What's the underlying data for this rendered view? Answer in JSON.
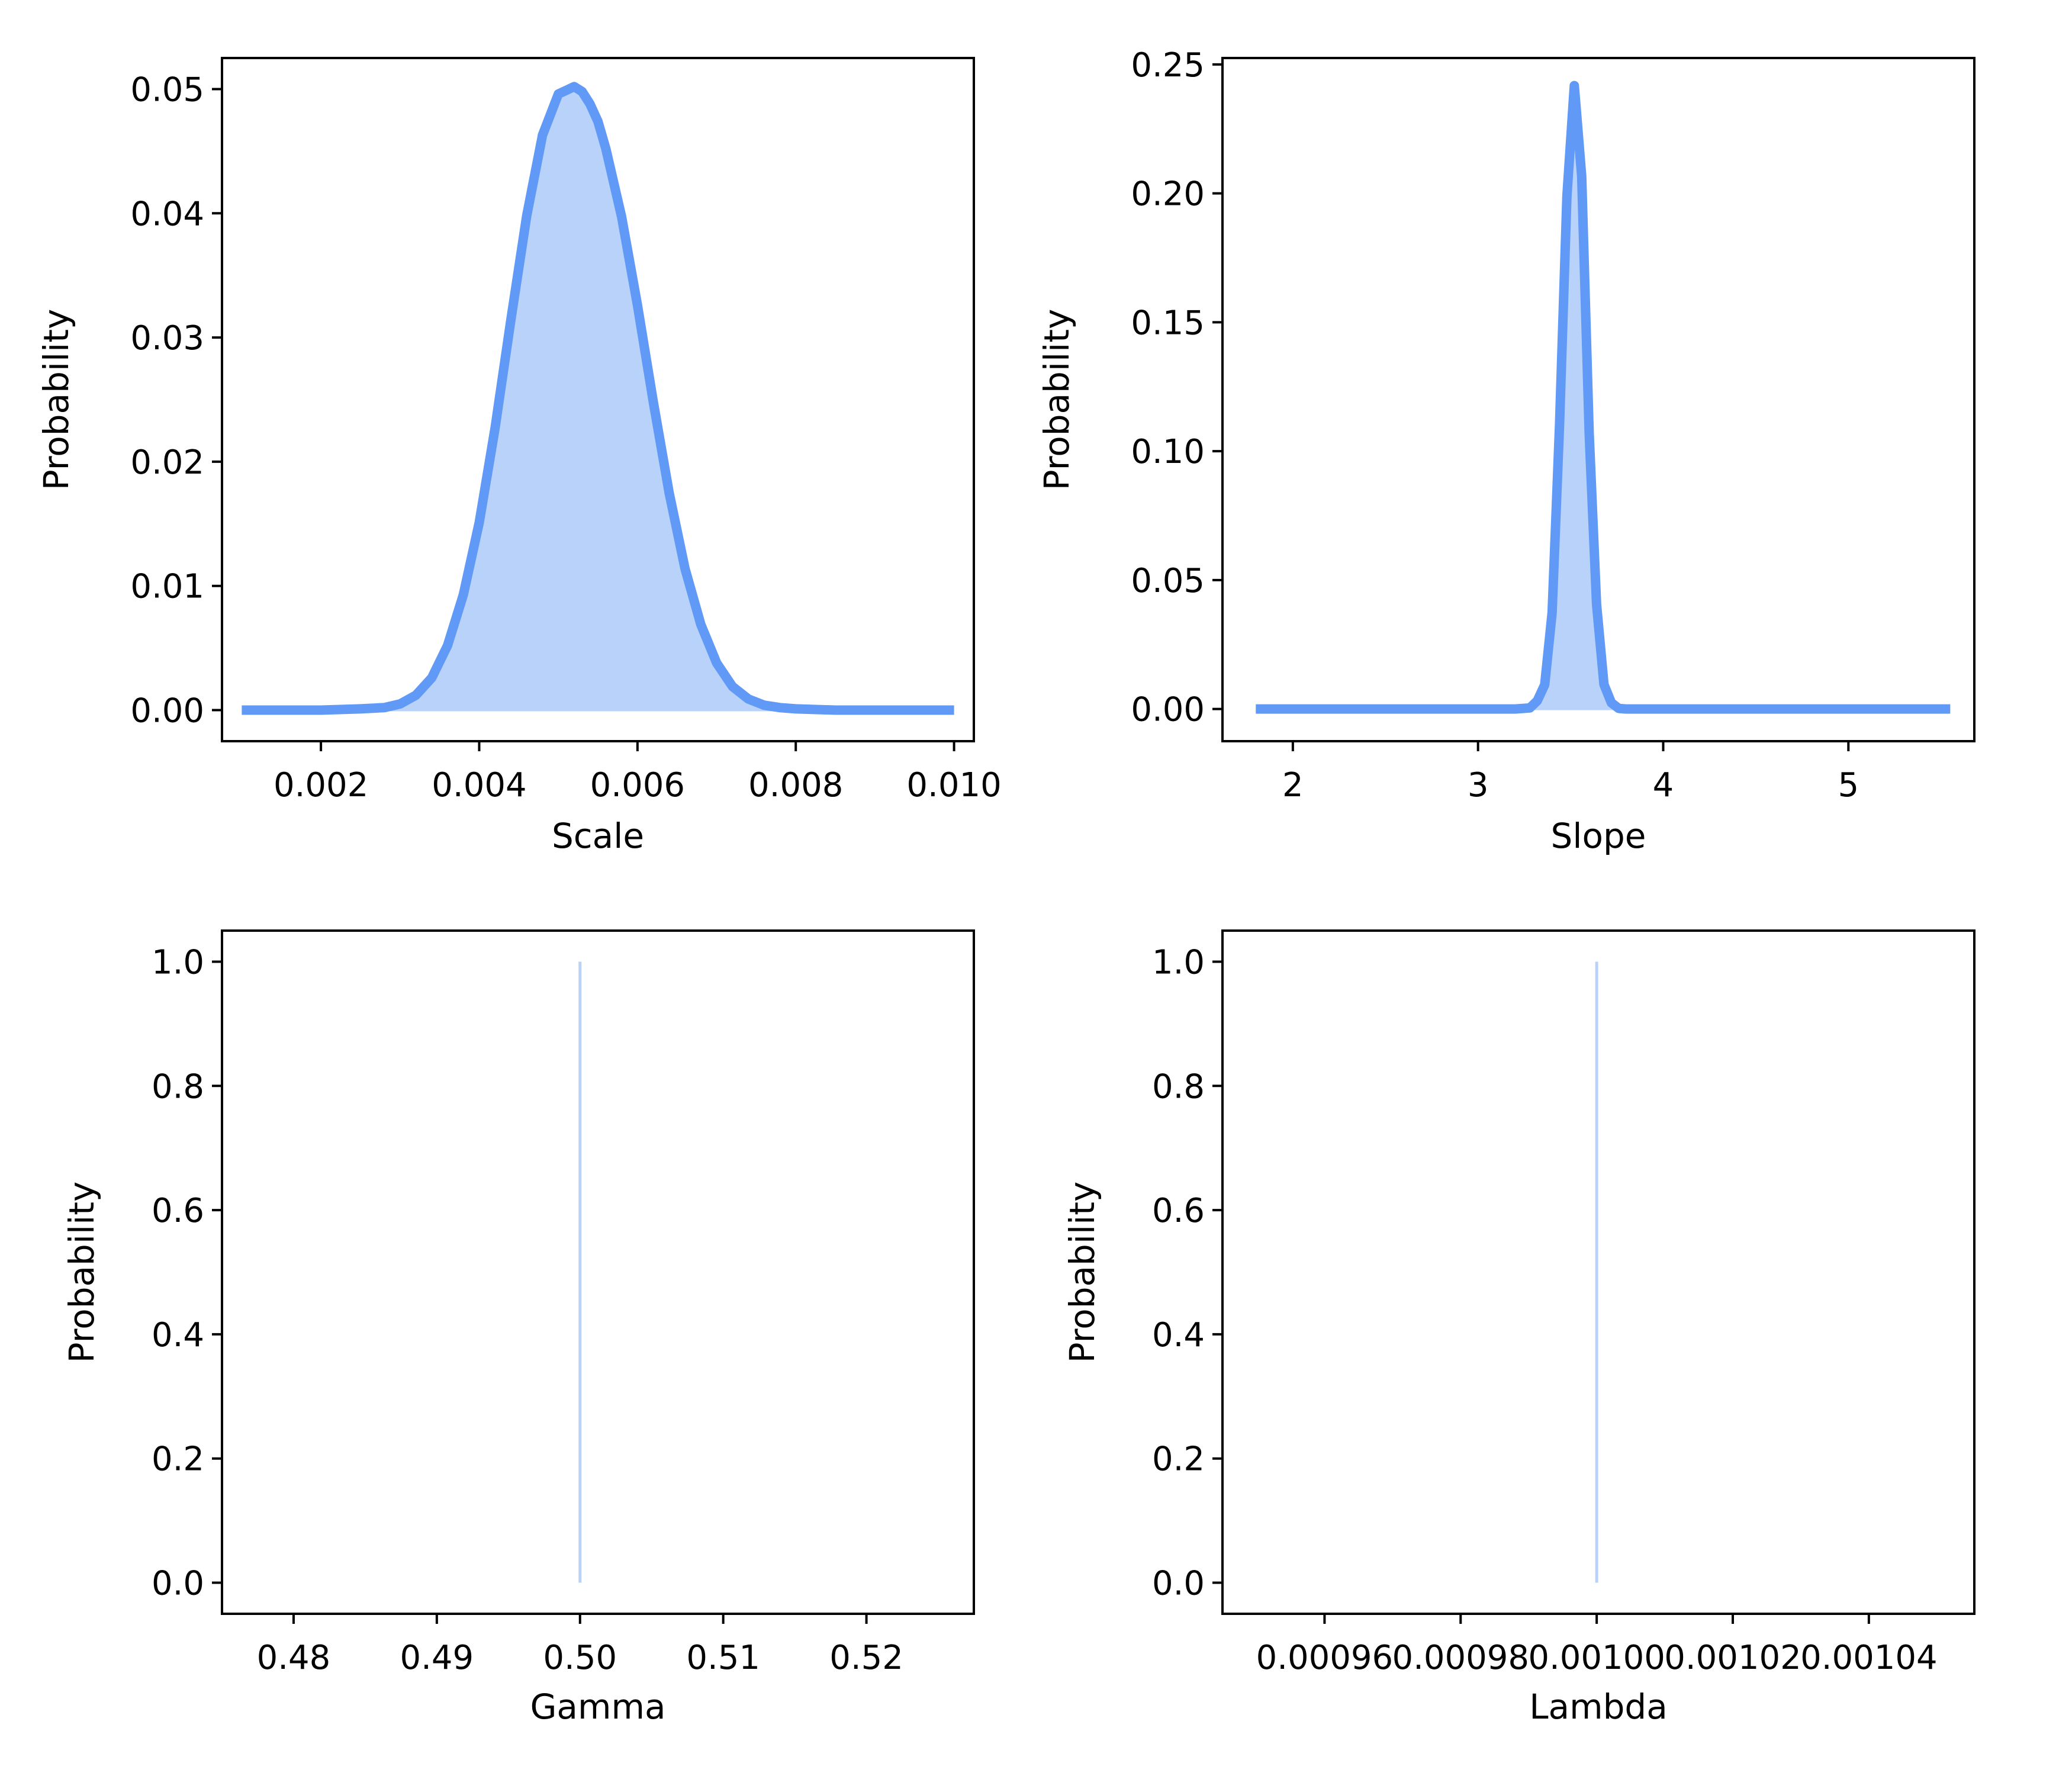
{
  "colors": {
    "line": "#6199f6",
    "fill": "#b9d2fa",
    "axes": "#000000",
    "background": "#ffffff"
  },
  "chart_data": [
    {
      "type": "area",
      "xlabel": "Scale",
      "ylabel": "Probability",
      "xlim": [
        0.00075,
        0.01025
      ],
      "ylim": [
        -0.0025,
        0.0525
      ],
      "xticks": [
        0.002,
        0.004,
        0.006,
        0.008,
        0.01
      ],
      "xtick_labels": [
        "0.002",
        "0.004",
        "0.006",
        "0.008",
        "0.010"
      ],
      "yticks": [
        0.0,
        0.01,
        0.02,
        0.03,
        0.04,
        0.05
      ],
      "ytick_labels": [
        "0.00",
        "0.01",
        "0.02",
        "0.03",
        "0.04",
        "0.05"
      ],
      "x": [
        0.001,
        0.0015,
        0.002,
        0.0025,
        0.0028,
        0.003,
        0.0032,
        0.0034,
        0.0036,
        0.0038,
        0.004,
        0.0042,
        0.0044,
        0.0046,
        0.0048,
        0.005,
        0.0051,
        0.0052,
        0.0053,
        0.0054,
        0.0055,
        0.0056,
        0.0058,
        0.006,
        0.0062,
        0.0064,
        0.0066,
        0.0068,
        0.007,
        0.0072,
        0.0074,
        0.0076,
        0.0078,
        0.008,
        0.0085,
        0.009,
        0.0095,
        0.01
      ],
      "y": [
        0.0,
        0.0,
        0.0,
        0.0001,
        0.0002,
        0.0005,
        0.0012,
        0.0026,
        0.0052,
        0.0093,
        0.0151,
        0.0227,
        0.0314,
        0.0398,
        0.0463,
        0.0496,
        0.0499,
        0.0502,
        0.0498,
        0.0488,
        0.0474,
        0.0452,
        0.0397,
        0.0326,
        0.0248,
        0.0175,
        0.0114,
        0.0069,
        0.0038,
        0.0019,
        0.0009,
        0.0004,
        0.0002,
        0.0001,
        0.0,
        0.0,
        0.0,
        0.0
      ]
    },
    {
      "type": "area",
      "xlabel": "Slope",
      "ylabel": "Probability",
      "xlim": [
        1.62,
        5.68
      ],
      "ylim": [
        -0.0125,
        0.2525
      ],
      "xticks": [
        2,
        3,
        4,
        5
      ],
      "xtick_labels": [
        "2",
        "3",
        "4",
        "5"
      ],
      "yticks": [
        0.0,
        0.05,
        0.1,
        0.15,
        0.2,
        0.25
      ],
      "ytick_labels": [
        "0.00",
        "0.05",
        "0.10",
        "0.15",
        "0.20",
        "0.25"
      ],
      "x": [
        1.8,
        2.5,
        3.0,
        3.2,
        3.28,
        3.32,
        3.36,
        3.4,
        3.44,
        3.48,
        3.52,
        3.56,
        3.6,
        3.64,
        3.68,
        3.72,
        3.76,
        3.8,
        4.0,
        4.5,
        5.0,
        5.55
      ],
      "y": [
        0.0,
        0.0,
        0.0,
        0.0,
        0.0004,
        0.0032,
        0.0094,
        0.0373,
        0.1098,
        0.1989,
        0.2418,
        0.2066,
        0.1071,
        0.0406,
        0.0095,
        0.0024,
        0.0002,
        0.0,
        0.0,
        0.0,
        0.0,
        0.0
      ]
    },
    {
      "type": "bar",
      "xlabel": "Gamma",
      "ylabel": "Probability",
      "xlim": [
        0.475,
        0.5275
      ],
      "ylim": [
        -0.05,
        1.05
      ],
      "xticks": [
        0.48,
        0.49,
        0.5,
        0.51,
        0.52
      ],
      "xtick_labels": [
        "0.48",
        "0.49",
        "0.50",
        "0.51",
        "0.52"
      ],
      "yticks": [
        0.0,
        0.2,
        0.4,
        0.6,
        0.8,
        1.0
      ],
      "ytick_labels": [
        "0.0",
        "0.2",
        "0.4",
        "0.6",
        "0.8",
        "1.0"
      ],
      "x": [
        0.5
      ],
      "y": [
        1.0
      ]
    },
    {
      "type": "bar",
      "xlabel": "Lambda",
      "ylabel": "Probability",
      "xlim": [
        0.000945,
        0.0010555
      ],
      "ylim": [
        -0.05,
        1.05
      ],
      "xticks": [
        0.00096,
        0.00098,
        0.001,
        0.00102,
        0.00104
      ],
      "xtick_labels": [
        "0.00096",
        "0.00098",
        "0.00100",
        "0.00102",
        "0.00104"
      ],
      "yticks": [
        0.0,
        0.2,
        0.4,
        0.6,
        0.8,
        1.0
      ],
      "ytick_labels": [
        "0.0",
        "0.2",
        "0.4",
        "0.6",
        "0.8",
        "1.0"
      ],
      "x": [
        0.001
      ],
      "y": [
        1.0
      ]
    }
  ]
}
